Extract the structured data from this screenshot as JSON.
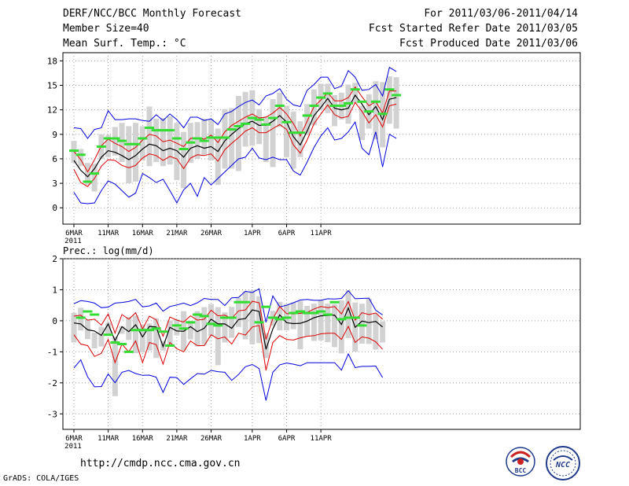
{
  "header": {
    "title": "DERF/NCC/BCC Monthly Forecast",
    "member_size": "Member Size=40",
    "variable": "Mean Surf. Temp.: °C",
    "period": "For 2011/03/06-2011/04/14",
    "refer_date": "Fcst Started Refer Date 2011/03/05",
    "produced_date": "Fcst Produced Date 2011/03/06"
  },
  "footer": {
    "url": "http://cmdp.ncc.cma.gov.cn",
    "credit": "GrADS: COLA/IGES"
  },
  "logos": {
    "bcc": "BCC",
    "ncc": "NCC"
  },
  "colors": {
    "ensemble_mean": "#000000",
    "spread_band": "#dd0000",
    "extreme_band": "#0000dd",
    "observation": "#33dd33",
    "box": "#d2d2d2"
  },
  "chart_data": [
    {
      "type": "line",
      "title": "Mean Surf. Temp.: °C",
      "x_tick_labels": [
        "6MAR",
        "11MAR",
        "16MAR",
        "21MAR",
        "26MAR",
        "1APR",
        "6APR",
        "11APR"
      ],
      "x_year_label": "2011",
      "ylim": [
        -2,
        19
      ],
      "y_ticks": [
        0,
        3,
        6,
        9,
        12,
        15,
        18
      ],
      "grid": true,
      "series": [
        {
          "name": "mean",
          "values": [
            5.8,
            4.6,
            3.8,
            4.8,
            6.2,
            7.0,
            6.8,
            6.4,
            5.9,
            6.4,
            7.2,
            7.8,
            7.6,
            7.0,
            7.3,
            7.0,
            6.2,
            7.3,
            7.6,
            7.3,
            7.5,
            6.9,
            8.2,
            9.0,
            9.7,
            10.3,
            10.6,
            10.1,
            10.1,
            10.6,
            11.3,
            10.5,
            8.7,
            7.7,
            9.4,
            11.3,
            12.3,
            13.4,
            12.2,
            12.0,
            12.2,
            13.8,
            12.7,
            11.4,
            12.4,
            10.8,
            13.3,
            13.5
          ]
        },
        {
          "name": "upper_spread",
          "values": [
            6.9,
            5.9,
            4.4,
            5.9,
            7.6,
            8.4,
            7.9,
            7.5,
            6.9,
            7.4,
            8.3,
            9.0,
            8.8,
            8.1,
            8.3,
            7.9,
            7.5,
            8.5,
            8.6,
            8.4,
            8.9,
            8.0,
            9.3,
            10.1,
            10.6,
            11.1,
            11.5,
            11.0,
            11.1,
            11.6,
            12.3,
            11.5,
            10.3,
            8.8,
            10.6,
            12.4,
            13.2,
            14.1,
            13.1,
            13.1,
            13.5,
            14.8,
            13.6,
            12.5,
            13.0,
            11.6,
            14.3,
            14.3
          ]
        },
        {
          "name": "lower_spread",
          "values": [
            4.7,
            3.1,
            2.6,
            3.6,
            5.1,
            5.9,
            5.8,
            5.2,
            4.9,
            5.2,
            6.1,
            6.6,
            6.4,
            5.8,
            6.3,
            6.0,
            4.8,
            6.1,
            6.5,
            6.4,
            6.6,
            5.7,
            7.1,
            7.9,
            8.6,
            9.4,
            9.8,
            9.2,
            9.2,
            9.7,
            10.2,
            9.6,
            7.7,
            6.7,
            8.3,
            10.3,
            11.5,
            12.6,
            11.4,
            11.0,
            11.2,
            12.9,
            11.8,
            10.4,
            11.4,
            9.9,
            12.5,
            12.7
          ]
        },
        {
          "name": "max",
          "values": [
            9.8,
            9.7,
            8.5,
            9.6,
            9.8,
            11.9,
            10.8,
            10.8,
            10.9,
            10.9,
            10.7,
            10.6,
            11.4,
            10.7,
            11.5,
            10.8,
            9.8,
            11.1,
            11.1,
            10.7,
            10.9,
            10.2,
            11.5,
            11.8,
            12.4,
            12.9,
            13.2,
            12.6,
            13.7,
            14.0,
            14.6,
            13.3,
            12.6,
            12.4,
            14.4,
            15.1,
            16.0,
            16.0,
            14.6,
            14.9,
            16.8,
            16.0,
            14.4,
            14.5,
            15.1,
            13.7,
            17.2,
            16.7
          ]
        },
        {
          "name": "min",
          "values": [
            1.9,
            0.6,
            0.5,
            0.6,
            2.1,
            3.3,
            2.9,
            2.1,
            1.3,
            1.8,
            4.2,
            3.7,
            3.1,
            3.5,
            2.1,
            0.6,
            2.2,
            3.0,
            1.4,
            3.7,
            2.8,
            3.6,
            4.4,
            5.2,
            6.0,
            6.2,
            7.3,
            6.1,
            5.9,
            6.2,
            5.9,
            5.9,
            4.5,
            4.0,
            5.6,
            7.4,
            8.8,
            9.8,
            8.3,
            8.5,
            9.3,
            10.5,
            7.3,
            6.5,
            9.3,
            5.0,
            9.0,
            8.5
          ]
        },
        {
          "name": "observed",
          "values": [
            7.0,
            6.5,
            3.2,
            4.2,
            7.5,
            8.5,
            8.5,
            8.2,
            7.8,
            7.8,
            8.5,
            9.8,
            9.5,
            9.5,
            9.5,
            8.5,
            7.2,
            8.0,
            8.5,
            8.2,
            8.6,
            8.6,
            8.6,
            9.6,
            10.0,
            10.3,
            11.0,
            10.8,
            10.2,
            11.0,
            12.5,
            10.5,
            9.2,
            9.2,
            11.3,
            12.5,
            13.5,
            14.0,
            12.5,
            12.5,
            12.8,
            14.5,
            13.0,
            11.8,
            13.0,
            11.5,
            14.5,
            13.8
          ]
        }
      ],
      "box_low": [
        5.5,
        5.1,
        2.8,
        2.0,
        6.0,
        6.2,
        6.4,
        5.6,
        3.0,
        3.2,
        5.8,
        5.1,
        5.6,
        5.1,
        5.3,
        3.4,
        2.4,
        5.5,
        6.0,
        6.5,
        5.8,
        2.8,
        4.8,
        4.8,
        4.5,
        7.5,
        7.6,
        7.8,
        5.6,
        5.0,
        9.9,
        6.2,
        4.8,
        6.2,
        8.9,
        10.1,
        12.0,
        11.6,
        10.0,
        10.8,
        10.3,
        12.8,
        8.3,
        9.7,
        8.4,
        7.4,
        10.3,
        9.7
      ],
      "box_high": [
        8.2,
        7.2,
        5.5,
        5.4,
        9.0,
        8.9,
        9.9,
        10.4,
        10.0,
        10.4,
        10.0,
        12.4,
        10.9,
        11.0,
        11.2,
        10.4,
        9.3,
        10.4,
        10.5,
        10.9,
        10.8,
        9.7,
        12.1,
        12.2,
        13.7,
        14.2,
        14.4,
        12.1,
        11.2,
        13.3,
        14.1,
        12.5,
        11.8,
        10.6,
        12.7,
        14.5,
        15.2,
        15.2,
        13.8,
        14.1,
        15.1,
        15.3,
        12.5,
        13.9,
        15.5,
        15.4,
        16.1,
        16.0
      ]
    },
    {
      "type": "line",
      "title": "Prec.: log(mm/d)",
      "x_tick_labels": [
        "6MAR",
        "11MAR",
        "16MAR",
        "21MAR",
        "26MAR",
        "1APR",
        "6APR",
        "11APR"
      ],
      "x_year_label": "2011",
      "ylim": [
        -3.5,
        2
      ],
      "y_ticks": [
        -3,
        -2,
        -1,
        0,
        1,
        2
      ],
      "grid": true,
      "series": [
        {
          "name": "mean",
          "values": [
            -0.07,
            -0.1,
            -0.29,
            -0.33,
            -0.47,
            -0.1,
            -0.64,
            -0.19,
            -0.35,
            -0.13,
            -0.52,
            -0.18,
            -0.2,
            -0.83,
            -0.21,
            -0.33,
            -0.34,
            -0.19,
            -0.35,
            -0.24,
            0.05,
            -0.1,
            -0.1,
            -0.24,
            0.04,
            0.07,
            0.35,
            0.3,
            -0.92,
            -0.26,
            0.19,
            -0.06,
            -0.09,
            -0.08,
            -0.01,
            0.1,
            0.16,
            0.17,
            0.18,
            -0.12,
            0.41,
            -0.21,
            -0.01,
            -0.06,
            -0.02,
            -0.2
          ]
        },
        {
          "name": "upper_spread",
          "values": [
            0.15,
            0.18,
            0.02,
            0.05,
            -0.14,
            0.22,
            -0.4,
            0.2,
            0.05,
            0.26,
            -0.26,
            0.15,
            0.03,
            -0.5,
            0.12,
            0.02,
            -0.04,
            0.16,
            0.02,
            0.05,
            0.34,
            0.16,
            0.18,
            0.08,
            0.32,
            0.35,
            0.63,
            0.58,
            -0.6,
            0.07,
            0.46,
            0.23,
            0.22,
            0.24,
            0.27,
            0.38,
            0.46,
            0.42,
            0.46,
            0.22,
            0.62,
            0.02,
            0.26,
            0.2,
            0.25,
            0.05
          ]
        },
        {
          "name": "lower_spread",
          "values": [
            -0.45,
            -0.75,
            -0.8,
            -1.15,
            -1.05,
            -0.6,
            -1.35,
            -0.75,
            -1.0,
            -0.65,
            -1.35,
            -0.7,
            -0.77,
            -1.4,
            -0.7,
            -0.9,
            -1.0,
            -0.65,
            -0.8,
            -0.8,
            -0.45,
            -0.58,
            -0.52,
            -0.75,
            -0.4,
            -0.46,
            -0.2,
            -0.15,
            -1.6,
            -0.7,
            -0.48,
            -0.6,
            -0.62,
            -0.55,
            -0.5,
            -0.48,
            -0.42,
            -0.4,
            -0.4,
            -0.6,
            -0.18,
            -0.7,
            -0.52,
            -0.56,
            -0.68,
            -0.92
          ]
        },
        {
          "name": "max",
          "values": [
            0.55,
            0.65,
            0.62,
            0.57,
            0.42,
            0.44,
            0.57,
            0.59,
            0.62,
            0.69,
            0.45,
            0.48,
            0.57,
            0.31,
            0.46,
            0.51,
            0.57,
            0.49,
            0.58,
            0.72,
            0.69,
            0.69,
            0.49,
            0.74,
            0.75,
            0.95,
            0.91,
            1.03,
            -0.05,
            0.8,
            0.45,
            0.5,
            0.58,
            0.67,
            0.69,
            0.66,
            0.66,
            0.71,
            0.7,
            0.72,
            0.97,
            0.71,
            0.72,
            0.73,
            0.34,
            0.19
          ]
        },
        {
          "name": "min",
          "values": [
            -1.52,
            -1.26,
            -1.81,
            -2.13,
            -2.12,
            -1.71,
            -2.0,
            -1.66,
            -1.6,
            -1.7,
            -1.76,
            -1.75,
            -1.82,
            -2.31,
            -1.82,
            -1.83,
            -2.05,
            -1.87,
            -1.7,
            -1.72,
            -1.6,
            -1.64,
            -1.66,
            -1.92,
            -1.73,
            -1.48,
            -1.41,
            -1.54,
            -2.57,
            -1.66,
            -1.42,
            -1.36,
            -1.4,
            -1.45,
            -1.35,
            -1.35,
            -1.35,
            -1.35,
            -1.35,
            -1.59,
            -1.07,
            -1.51,
            -1.47,
            -1.47,
            -1.46,
            -1.83
          ]
        },
        {
          "name": "observed",
          "values": [
            0.1,
            0.3,
            0.2,
            -0.45,
            -0.7,
            -0.75,
            -1.0,
            -0.3,
            -0.3,
            -0.3,
            -0.25,
            -0.35,
            -0.8,
            -0.15,
            -0.25,
            -0.05,
            0.2,
            0.15,
            -0.1,
            -0.15,
            0.1,
            0.1,
            0.6,
            0.6,
            null,
            -0.05,
            0.45,
            0.1,
            0.05,
            0.1,
            0.25,
            0.3,
            0.25,
            0.25,
            0.3,
            0.2,
            0.6,
            0.05,
            0.1,
            0.1,
            -0.15
          ]
        },
        {
          "name": "observed_day_index",
          "values": [
            1,
            2,
            3,
            5,
            6,
            7,
            8,
            9,
            10,
            11,
            12,
            13,
            14,
            15,
            16,
            17,
            18,
            19,
            20,
            21,
            22,
            23,
            24,
            25,
            26,
            27,
            28,
            29,
            30,
            31,
            32,
            33,
            34,
            35,
            36,
            37,
            38,
            39,
            40,
            41,
            42
          ]
        }
      ],
      "box_low": [
        -0.7,
        -0.31,
        -0.59,
        -0.89,
        -0.83,
        -0.43,
        -2.43,
        -0.42,
        -0.62,
        -1.04,
        -1.02,
        -0.96,
        -1.2,
        -0.96,
        -0.76,
        -0.47,
        -0.96,
        -0.6,
        -0.83,
        -0.78,
        -0.5,
        -1.43,
        -0.7,
        -0.55,
        -0.2,
        -0.6,
        -0.76,
        -0.72,
        -1.2,
        -0.16,
        -0.31,
        -0.31,
        -0.27,
        -0.92,
        -0.51,
        -0.65,
        -0.63,
        -0.69,
        -0.85,
        -1.05,
        -0.56,
        -0.99,
        -0.74,
        -0.75,
        -0.93,
        -0.7
      ],
      "box_high": [
        0.26,
        0.42,
        0.03,
        -0.38,
        -0.19,
        -0.06,
        -0.52,
        -0.17,
        0.12,
        0.17,
        -0.12,
        -0.09,
        0.08,
        -0.65,
        0.01,
        0.05,
        0.31,
        0.0,
        0.31,
        0.44,
        0.54,
        0.44,
        0.27,
        0.45,
        0.73,
        0.95,
        0.98,
        0.79,
        -0.4,
        0.32,
        0.61,
        0.54,
        0.59,
        0.64,
        0.48,
        0.55,
        0.66,
        0.55,
        0.54,
        0.66,
        0.98,
        0.59,
        0.55,
        0.71,
        0.24,
        -0.02
      ]
    }
  ]
}
